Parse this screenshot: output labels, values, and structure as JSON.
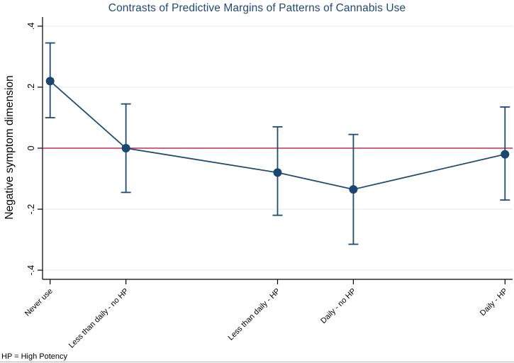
{
  "chart_data": {
    "type": "scatter",
    "subtype": "point-estimates-with-95ci",
    "title": "Contrasts of Predictive Margins of Patterns of Cannabis Use",
    "ylabel": "Negative symptom dimension",
    "xlabel": "",
    "note": "HP = High Potency",
    "categories": [
      "Never use",
      "Less than daily - no HP",
      "Less than daily - HP",
      "Daily - no HP",
      "Daily - HP"
    ],
    "x": [
      1,
      2,
      4,
      5,
      7
    ],
    "values": [
      0.22,
      0.0,
      -0.08,
      -0.135,
      -0.02
    ],
    "ci_low": [
      0.1,
      -0.145,
      -0.22,
      -0.315,
      -0.17
    ],
    "ci_high": [
      0.345,
      0.145,
      0.07,
      0.045,
      0.135
    ],
    "yticks": [
      0.4,
      0.2,
      0,
      -0.2,
      -0.4
    ],
    "ytick_labels": [
      ".4",
      ".2",
      "0",
      "-.2",
      "-.4"
    ],
    "ylim": [
      -0.43,
      0.43
    ],
    "xlim": [
      0.9,
      7.1
    ],
    "zero_reference_line": 0,
    "grid": true,
    "legend_position": "none",
    "colors": {
      "series": "#1e4c77",
      "marker": "#1a476f",
      "zero_line": "#c52a54",
      "gridline": "#e7f1f2",
      "axis": "#000000",
      "title": "#21497b",
      "tick_label": "#000000"
    }
  }
}
